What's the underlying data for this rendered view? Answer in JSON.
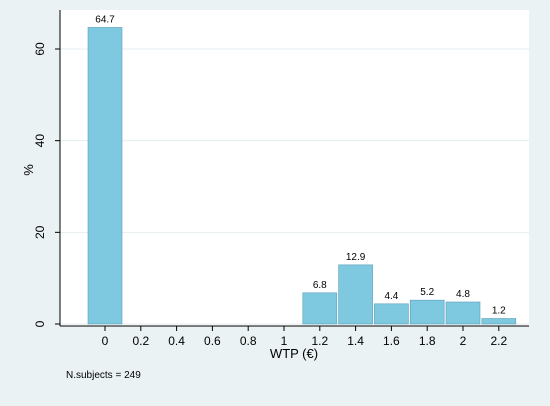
{
  "chart_data": {
    "type": "bar",
    "categories": [
      "0",
      "0.2",
      "0.4",
      "0.6",
      "0.8",
      "1",
      "1.2",
      "1.4",
      "1.6",
      "1.8",
      "2",
      "2.2"
    ],
    "values": [
      64.7,
      0,
      0,
      0,
      0,
      0,
      6.8,
      12.9,
      4.4,
      5.2,
      4.8,
      1.2
    ],
    "data_labels": [
      "64.7",
      "",
      "",
      "",
      "",
      "",
      "6.8",
      "12.9",
      "4.4",
      "5.2",
      "4.8",
      "1.2"
    ],
    "xlabel": "WTP (€)",
    "ylabel": "%",
    "ylim": [
      0,
      66
    ],
    "yticks": [
      0,
      20,
      40,
      60
    ],
    "grid": true,
    "note": "N.subjects = 249",
    "colors": {
      "bar": "#7ec8e0",
      "bar_stroke": "#5a9fb8",
      "plot_bg": "#ffffff",
      "outer_bg": "#eaf2f3",
      "grid": "#e6eef0"
    }
  }
}
